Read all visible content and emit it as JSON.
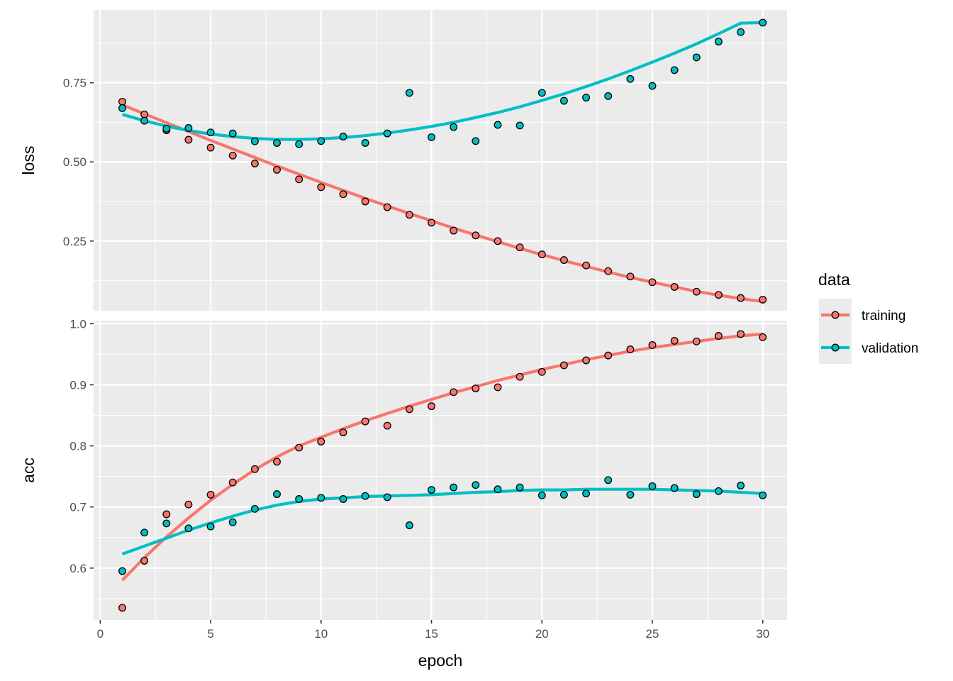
{
  "chart_data": {
    "type": "scatter",
    "x_label": "epoch",
    "x_ticks": [
      "0",
      "5",
      "10",
      "15",
      "20",
      "25",
      "30"
    ],
    "x_range": [
      -0.3,
      31.1
    ],
    "grid": true,
    "smoother": "loess",
    "legend": {
      "title": "data",
      "placement": "right",
      "entries": [
        {
          "label": "training",
          "color": "#F8766D"
        },
        {
          "label": "validation",
          "color": "#00BFC4"
        }
      ]
    },
    "colors": {
      "training": "#F8766D",
      "validation": "#00BFC4",
      "panel_bg": "#EBEBEB",
      "grid": "#FFFFFF",
      "point_stroke": "#000000"
    },
    "panels": [
      {
        "label": "loss",
        "y_range": [
          0.03,
          0.98
        ],
        "y_ticks": [
          {
            "v": 0.25,
            "t": "0.25"
          },
          {
            "v": 0.5,
            "t": "0.50"
          },
          {
            "v": 0.75,
            "t": "0.75"
          }
        ],
        "series": [
          {
            "name": "training",
            "x": [
              1,
              2,
              3,
              4,
              5,
              6,
              7,
              8,
              9,
              10,
              11,
              12,
              13,
              14,
              15,
              16,
              17,
              18,
              19,
              20,
              21,
              22,
              23,
              24,
              25,
              26,
              27,
              28,
              29,
              30
            ],
            "values": [
              0.69,
              0.65,
              0.6,
              0.57,
              0.545,
              0.52,
              0.495,
              0.475,
              0.445,
              0.42,
              0.398,
              0.375,
              0.357,
              0.333,
              0.308,
              0.283,
              0.268,
              0.25,
              0.23,
              0.208,
              0.19,
              0.173,
              0.155,
              0.138,
              0.12,
              0.105,
              0.09,
              0.08,
              0.07,
              0.065
            ],
            "fit": [
              0.68,
              0.652,
              0.624,
              0.596,
              0.568,
              0.541,
              0.514,
              0.487,
              0.461,
              0.435,
              0.41,
              0.385,
              0.361,
              0.337,
              0.314,
              0.291,
              0.269,
              0.248,
              0.227,
              0.207,
              0.188,
              0.17,
              0.152,
              0.135,
              0.12,
              0.105,
              0.091,
              0.079,
              0.068,
              0.059
            ]
          },
          {
            "name": "validation",
            "x": [
              1,
              2,
              3,
              4,
              5,
              6,
              7,
              8,
              9,
              10,
              11,
              12,
              13,
              14,
              15,
              16,
              17,
              18,
              19,
              20,
              21,
              22,
              23,
              24,
              25,
              26,
              27,
              28,
              29,
              30
            ],
            "values": [
              0.67,
              0.63,
              0.605,
              0.607,
              0.593,
              0.59,
              0.565,
              0.56,
              0.556,
              0.566,
              0.58,
              0.56,
              0.59,
              0.718,
              0.578,
              0.61,
              0.566,
              0.617,
              0.615,
              0.718,
              0.693,
              0.703,
              0.708,
              0.762,
              0.74,
              0.79,
              0.83,
              0.88,
              0.91,
              0.94
            ],
            "fit": [
              0.65,
              0.63,
              0.613,
              0.599,
              0.588,
              0.58,
              0.574,
              0.571,
              0.571,
              0.573,
              0.577,
              0.583,
              0.591,
              0.601,
              0.612,
              0.625,
              0.64,
              0.656,
              0.674,
              0.694,
              0.715,
              0.738,
              0.762,
              0.788,
              0.815,
              0.843,
              0.873,
              0.905,
              0.938,
              0.94
            ]
          }
        ]
      },
      {
        "label": "acc",
        "y_range": [
          0.515,
          1.005
        ],
        "y_ticks": [
          {
            "v": 0.6,
            "t": "0.6"
          },
          {
            "v": 0.7,
            "t": "0.7"
          },
          {
            "v": 0.8,
            "t": "0.8"
          },
          {
            "v": 0.9,
            "t": "0.9"
          },
          {
            "v": 1.0,
            "t": "1.0"
          }
        ],
        "series": [
          {
            "name": "training",
            "x": [
              1,
              2,
              3,
              4,
              5,
              6,
              7,
              8,
              9,
              10,
              11,
              12,
              13,
              14,
              15,
              16,
              17,
              18,
              19,
              20,
              21,
              22,
              23,
              24,
              25,
              26,
              27,
              28,
              29,
              30
            ],
            "values": [
              0.535,
              0.612,
              0.688,
              0.704,
              0.72,
              0.74,
              0.762,
              0.774,
              0.797,
              0.807,
              0.822,
              0.84,
              0.833,
              0.86,
              0.865,
              0.888,
              0.894,
              0.896,
              0.913,
              0.921,
              0.932,
              0.94,
              0.948,
              0.958,
              0.965,
              0.972,
              0.971,
              0.98,
              0.983,
              0.978
            ],
            "fit": [
              0.58,
              0.617,
              0.651,
              0.682,
              0.711,
              0.737,
              0.761,
              0.782,
              0.8,
              0.814,
              0.828,
              0.841,
              0.853,
              0.865,
              0.876,
              0.887,
              0.897,
              0.907,
              0.916,
              0.925,
              0.933,
              0.941,
              0.948,
              0.955,
              0.961,
              0.966,
              0.971,
              0.976,
              0.98,
              0.983
            ]
          },
          {
            "name": "validation",
            "x": [
              1,
              2,
              3,
              4,
              5,
              6,
              7,
              8,
              9,
              10,
              11,
              12,
              13,
              14,
              15,
              16,
              17,
              18,
              19,
              20,
              21,
              22,
              23,
              24,
              25,
              26,
              27,
              28,
              29,
              30
            ],
            "values": [
              0.595,
              0.658,
              0.673,
              0.665,
              0.668,
              0.675,
              0.697,
              0.721,
              0.713,
              0.715,
              0.713,
              0.718,
              0.716,
              0.67,
              0.728,
              0.732,
              0.736,
              0.729,
              0.732,
              0.719,
              0.72,
              0.722,
              0.744,
              0.72,
              0.734,
              0.731,
              0.721,
              0.726,
              0.735,
              0.719
            ]
          }
        ]
      }
    ],
    "validation_acc_fit": [
      0.623,
      0.636,
      0.649,
      0.662,
      0.674,
      0.685,
      0.695,
      0.703,
      0.709,
      0.713,
      0.715,
      0.717,
      0.718,
      0.719,
      0.72,
      0.722,
      0.724,
      0.725,
      0.727,
      0.728,
      0.728,
      0.729,
      0.729,
      0.729,
      0.729,
      0.728,
      0.727,
      0.726,
      0.724,
      0.722
    ]
  }
}
